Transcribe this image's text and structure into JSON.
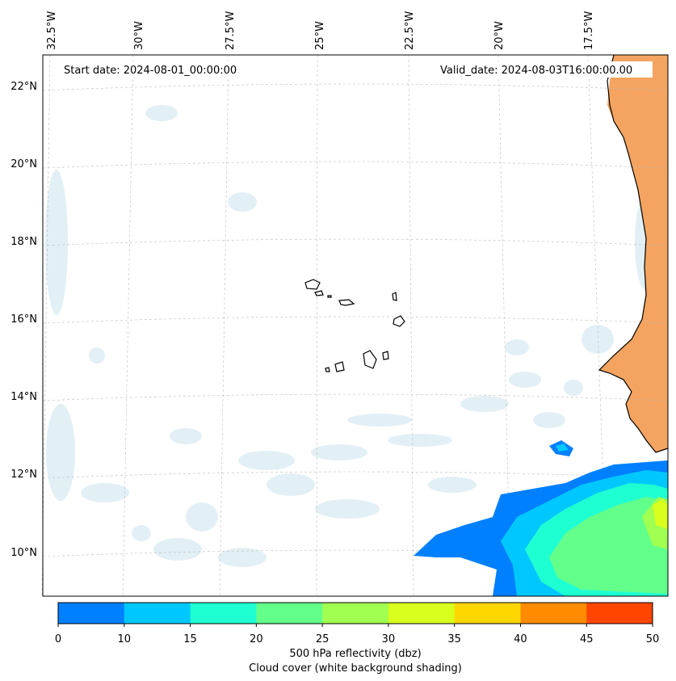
{
  "annotations": {
    "start_date": "Start date: 2024-08-01_00:00:00",
    "valid_date": "Valid_date: 2024-08-03T16:00:00.00"
  },
  "longitude_labels": [
    "32.5°W",
    "30°W",
    "27.5°W",
    "25°W",
    "22.5°W",
    "20°W",
    "17.5°W"
  ],
  "latitude_labels": [
    "22°N",
    "20°N",
    "18°N",
    "16°N",
    "14°N",
    "12°N",
    "10°N"
  ],
  "colorbar": {
    "ticks": [
      "0",
      "10",
      "15",
      "20",
      "25",
      "30",
      "35",
      "40",
      "45",
      "50"
    ],
    "colors": [
      "#0080ff",
      "#00c8ff",
      "#1effd2",
      "#62ff8a",
      "#a0ff50",
      "#d8ff1e",
      "#ffd700",
      "#ff8c00",
      "#ff4500"
    ],
    "label": "500 hPa reflectivity (dbz)",
    "sublabel": "Cloud cover (white background shading)"
  },
  "colors": {
    "land": "#f4a460",
    "cloud": "#cfe6ee",
    "gridline": "#bbbbbb",
    "coastline": "#000000"
  }
}
